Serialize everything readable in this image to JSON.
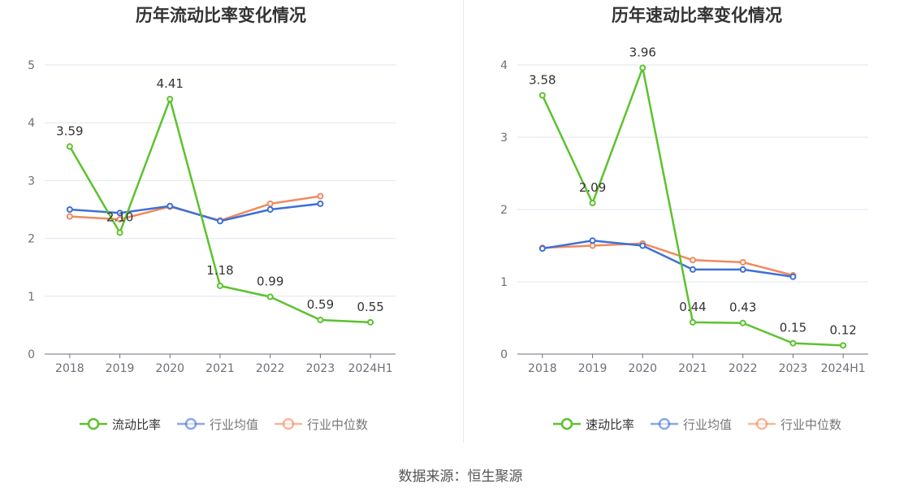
{
  "source": "数据来源：恒生聚源",
  "chart_data": [
    {
      "type": "line",
      "title": "历年流动比率变化情况",
      "categories": [
        "2018",
        "2019",
        "2020",
        "2021",
        "2022",
        "2023",
        "2024H1"
      ],
      "ylim": [
        0,
        5
      ],
      "yticks": [
        0,
        1,
        2,
        3,
        4,
        5
      ],
      "grid": true,
      "legend_position": "bottom",
      "series": [
        {
          "name": "流动比率",
          "color": "#5cc22e",
          "values": [
            3.59,
            2.1,
            4.41,
            1.18,
            0.99,
            0.59,
            0.55
          ],
          "labels": [
            "3.59",
            "2.10",
            "4.41",
            "1.18",
            "0.99",
            "0.59",
            "0.55"
          ]
        },
        {
          "name": "行业均值",
          "color": "#3e70d6",
          "values": [
            2.5,
            2.44,
            2.56,
            2.3,
            2.5,
            2.6,
            null
          ]
        },
        {
          "name": "行业中位数",
          "color": "#f08a5d",
          "values": [
            2.38,
            2.33,
            2.55,
            2.31,
            2.6,
            2.73,
            null
          ]
        }
      ]
    },
    {
      "type": "line",
      "title": "历年速动比率变化情况",
      "categories": [
        "2018",
        "2019",
        "2020",
        "2021",
        "2022",
        "2023",
        "2024H1"
      ],
      "ylim": [
        0,
        4
      ],
      "yticks": [
        0,
        1,
        2,
        3,
        4
      ],
      "grid": true,
      "legend_position": "bottom",
      "series": [
        {
          "name": "速动比率",
          "color": "#5cc22e",
          "values": [
            3.58,
            2.09,
            3.96,
            0.44,
            0.43,
            0.15,
            0.12
          ],
          "labels": [
            "3.58",
            "2.09",
            "3.96",
            "0.44",
            "0.43",
            "0.15",
            "0.12"
          ]
        },
        {
          "name": "行业均值",
          "color": "#3e70d6",
          "values": [
            1.46,
            1.57,
            1.5,
            1.17,
            1.17,
            1.07,
            null
          ]
        },
        {
          "name": "行业中位数",
          "color": "#f08a5d",
          "values": [
            1.47,
            1.5,
            1.53,
            1.3,
            1.27,
            1.09,
            null
          ]
        }
      ]
    }
  ]
}
